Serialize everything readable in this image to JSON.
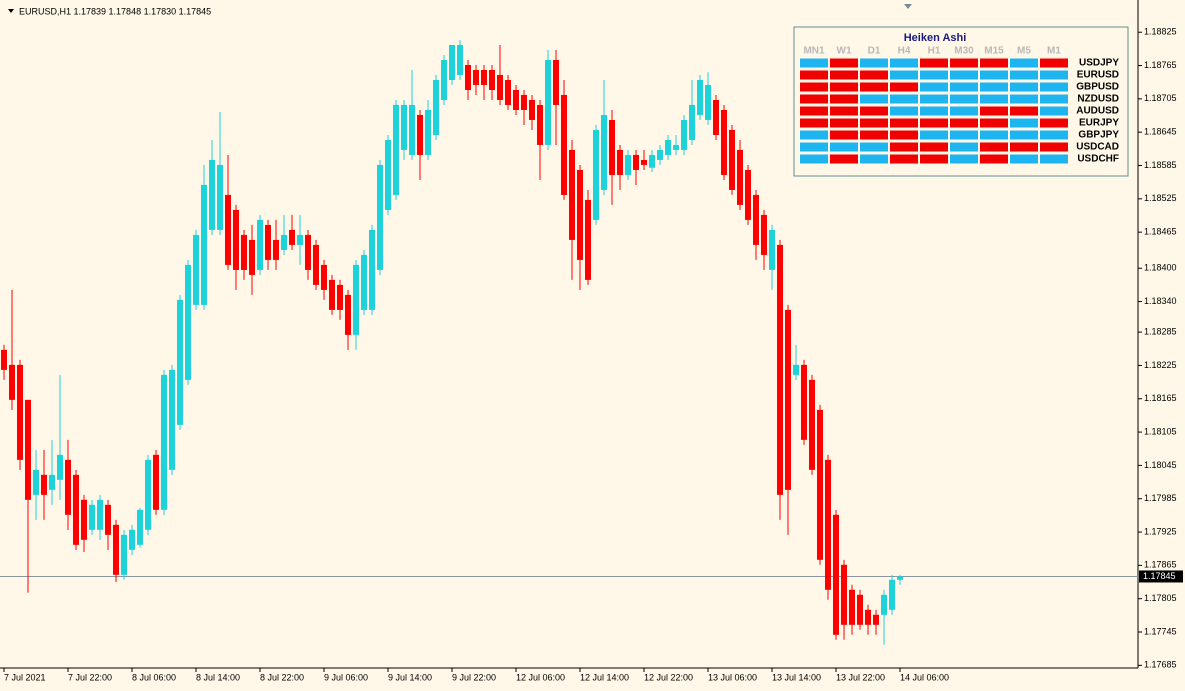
{
  "header": "EURUSD,H1  1.17839 1.17848 1.17830 1.17845",
  "chart_data": {
    "type": "candlestick",
    "x": [
      "7 Jul 2021",
      null,
      null,
      null,
      null,
      null,
      null,
      null,
      "7 Jul 22:00",
      null,
      null,
      null,
      null,
      null,
      null,
      null,
      "8 Jul 06:00",
      null,
      null,
      null,
      null,
      null,
      null,
      null,
      "8 Jul 14:00",
      null,
      null,
      null,
      null,
      null,
      null,
      null,
      "8 Jul 22:00",
      null,
      null,
      null,
      null,
      null,
      null,
      null,
      "9 Jul 06:00",
      null,
      null,
      null,
      null,
      null,
      null,
      null,
      "9 Jul 14:00",
      null,
      null,
      null,
      null,
      null,
      null,
      null,
      "9 Jul 22:00",
      null,
      null,
      null,
      null,
      null,
      null,
      null,
      "12 Jul 06:00",
      null,
      null,
      null,
      null,
      null,
      null,
      null,
      "12 Jul 14:00",
      null,
      null,
      null,
      null,
      null,
      null,
      null,
      "12 Jul 22:00",
      null,
      null,
      null,
      null,
      null,
      null,
      null,
      "13 Jul 06:00",
      null,
      null,
      null,
      null,
      null,
      null,
      null,
      "13 Jul 14:00",
      null,
      null,
      null,
      null,
      null,
      null,
      null,
      "13 Jul 22:00",
      null,
      null,
      null,
      null,
      null,
      null,
      null,
      "14 Jul 06:00"
    ],
    "ohlc": [
      [
        1.18253,
        1.18262,
        1.18199,
        1.18217
      ],
      [
        1.18226,
        1.18361,
        1.18145,
        1.18163
      ],
      [
        1.18226,
        1.18235,
        1.18037,
        1.18055
      ],
      [
        1.18163,
        1.18163,
        1.17816,
        1.17983
      ],
      [
        1.17992,
        1.18073,
        1.17947,
        1.18037
      ],
      [
        1.18028,
        1.18073,
        1.17947,
        1.17992
      ],
      [
        1.18001,
        1.18091,
        1.17974,
        1.18028
      ],
      [
        1.18019,
        1.18208,
        1.17983,
        1.18064
      ],
      [
        1.18055,
        1.18091,
        1.17929,
        1.17956
      ],
      [
        1.18028,
        1.18037,
        1.17893,
        1.17902
      ],
      [
        1.17983,
        1.17992,
        1.17889,
        1.17911
      ],
      [
        1.17929,
        1.17983,
        1.1792,
        1.17974
      ],
      [
        1.17929,
        1.17992,
        1.17911,
        1.17983
      ],
      [
        1.17974,
        1.17983,
        1.17893,
        1.1792
      ],
      [
        1.17938,
        1.17947,
        1.17835,
        1.17848
      ],
      [
        1.17848,
        1.17929,
        1.17839,
        1.1792
      ],
      [
        1.17893,
        1.17938,
        1.17884,
        1.17929
      ],
      [
        1.17902,
        1.17969,
        1.17897,
        1.17965
      ],
      [
        1.17929,
        1.18064,
        1.1792,
        1.18055
      ],
      [
        1.18064,
        1.18073,
        1.17956,
        1.17965
      ],
      [
        1.17965,
        1.18217,
        1.17956,
        1.18208
      ],
      [
        1.18037,
        1.18226,
        1.18028,
        1.18217
      ],
      [
        1.18118,
        1.18352,
        1.18109,
        1.18343
      ],
      [
        1.18199,
        1.18415,
        1.1819,
        1.18406
      ],
      [
        1.18334,
        1.18469,
        1.18325,
        1.1846
      ],
      [
        1.18334,
        1.18586,
        1.18325,
        1.1855
      ],
      [
        1.18469,
        1.18631,
        1.1846,
        1.18595
      ],
      [
        1.18469,
        1.18681,
        1.1846,
        1.18586
      ],
      [
        1.18532,
        1.18604,
        1.18397,
        1.18406
      ],
      [
        1.18505,
        1.18514,
        1.18361,
        1.18397
      ],
      [
        1.1846,
        1.18469,
        1.18379,
        1.18397
      ],
      [
        1.18451,
        1.18478,
        1.18352,
        1.18388
      ],
      [
        1.18397,
        1.18496,
        1.18388,
        1.18487
      ],
      [
        1.18478,
        1.18487,
        1.18397,
        1.18415
      ],
      [
        1.18451,
        1.18487,
        1.18397,
        1.18415
      ],
      [
        1.18433,
        1.18496,
        1.18424,
        1.1846
      ],
      [
        1.18469,
        1.18496,
        1.18433,
        1.18442
      ],
      [
        1.18442,
        1.18496,
        1.18406,
        1.1846
      ],
      [
        1.1846,
        1.18469,
        1.18379,
        1.18397
      ],
      [
        1.18442,
        1.18451,
        1.18361,
        1.1837
      ],
      [
        1.18406,
        1.18415,
        1.18343,
        1.18361
      ],
      [
        1.18379,
        1.18388,
        1.18316,
        1.18325
      ],
      [
        1.1837,
        1.18379,
        1.18307,
        1.18325
      ],
      [
        1.18352,
        1.18361,
        1.18253,
        1.1828
      ],
      [
        1.1828,
        1.18415,
        1.18253,
        1.18406
      ],
      [
        1.18325,
        1.18433,
        1.18316,
        1.18424
      ],
      [
        1.18325,
        1.18478,
        1.18316,
        1.18469
      ],
      [
        1.18397,
        1.18595,
        1.18388,
        1.18586
      ],
      [
        1.18505,
        1.1864,
        1.18496,
        1.18631
      ],
      [
        1.18532,
        1.18703,
        1.18523,
        1.18694
      ],
      [
        1.18613,
        1.18703,
        1.18595,
        1.18694
      ],
      [
        1.18604,
        1.18757,
        1.18595,
        1.18694
      ],
      [
        1.18676,
        1.18685,
        1.18559,
        1.18604
      ],
      [
        1.18604,
        1.18703,
        1.18595,
        1.18685
      ],
      [
        1.1864,
        1.18748,
        1.18631,
        1.18739
      ],
      [
        1.18703,
        1.18784,
        1.18694,
        1.18775
      ],
      [
        1.18739,
        1.18802,
        1.1873,
        1.18802
      ],
      [
        1.18748,
        1.18811,
        1.18739,
        1.18802
      ],
      [
        1.18766,
        1.18775,
        1.18703,
        1.18721
      ],
      [
        1.18757,
        1.18766,
        1.18712,
        1.1873
      ],
      [
        1.18757,
        1.18766,
        1.18703,
        1.1873
      ],
      [
        1.18757,
        1.18766,
        1.18703,
        1.18721
      ],
      [
        1.18748,
        1.18802,
        1.18694,
        1.18703
      ],
      [
        1.18739,
        1.18748,
        1.18685,
        1.18694
      ],
      [
        1.18721,
        1.1873,
        1.18676,
        1.18685
      ],
      [
        1.18712,
        1.18721,
        1.18658,
        1.18685
      ],
      [
        1.18703,
        1.18712,
        1.18649,
        1.18667
      ],
      [
        1.18694,
        1.18703,
        1.18559,
        1.18622
      ],
      [
        1.18622,
        1.18793,
        1.18613,
        1.18775
      ],
      [
        1.18775,
        1.18793,
        1.18622,
        1.18694
      ],
      [
        1.18712,
        1.18739,
        1.18523,
        1.18532
      ],
      [
        1.18613,
        1.18631,
        1.18379,
        1.18451
      ],
      [
        1.18577,
        1.18586,
        1.18361,
        1.18415
      ],
      [
        1.18523,
        1.18541,
        1.1837,
        1.18379
      ],
      [
        1.18487,
        1.18658,
        1.18478,
        1.18649
      ],
      [
        1.18541,
        1.18739,
        1.18532,
        1.18676
      ],
      [
        1.18667,
        1.18685,
        1.18514,
        1.18568
      ],
      [
        1.18613,
        1.18622,
        1.18541,
        1.18568
      ],
      [
        1.18568,
        1.18613,
        1.18559,
        1.18604
      ],
      [
        1.18604,
        1.18613,
        1.1855,
        1.18577
      ],
      [
        1.18595,
        1.18613,
        1.18577,
        1.18586
      ],
      [
        1.18581,
        1.18613,
        1.18573,
        1.18604
      ],
      [
        1.18595,
        1.18622,
        1.18586,
        1.18613
      ],
      [
        1.18604,
        1.1864,
        1.18595,
        1.18631
      ],
      [
        1.18613,
        1.1864,
        1.18604,
        1.18622
      ],
      [
        1.18613,
        1.18676,
        1.18604,
        1.18667
      ],
      [
        1.18631,
        1.18739,
        1.18622,
        1.18694
      ],
      [
        1.18676,
        1.18748,
        1.18667,
        1.18739
      ],
      [
        1.18667,
        1.18753,
        1.18658,
        1.1873
      ],
      [
        1.18703,
        1.18712,
        1.18631,
        1.1864
      ],
      [
        1.18685,
        1.18694,
        1.18559,
        1.18568
      ],
      [
        1.18649,
        1.18658,
        1.18532,
        1.18541
      ],
      [
        1.18613,
        1.18631,
        1.18505,
        1.18514
      ],
      [
        1.18577,
        1.18586,
        1.18478,
        1.18487
      ],
      [
        1.18532,
        1.18541,
        1.18415,
        1.18442
      ],
      [
        1.18496,
        1.18505,
        1.18397,
        1.18424
      ],
      [
        1.18397,
        1.18478,
        1.18361,
        1.18469
      ],
      [
        1.18442,
        1.18451,
        1.17947,
        1.17992
      ],
      [
        1.18325,
        1.18334,
        1.1792,
        1.18001
      ],
      [
        1.18208,
        1.18262,
        1.18199,
        1.18226
      ],
      [
        1.18226,
        1.18235,
        1.18082,
        1.18091
      ],
      [
        1.18199,
        1.18208,
        1.18028,
        1.18037
      ],
      [
        1.18145,
        1.18154,
        1.17866,
        1.17875
      ],
      [
        1.18055,
        1.18064,
        1.17803,
        1.17821
      ],
      [
        1.17956,
        1.17965,
        1.17731,
        1.1774
      ],
      [
        1.17866,
        1.17875,
        1.17731,
        1.17758
      ],
      [
        1.17821,
        1.1783,
        1.1774,
        1.17758
      ],
      [
        1.17812,
        1.17821,
        1.17749,
        1.17758
      ],
      [
        1.17785,
        1.17794,
        1.1774,
        1.17758
      ],
      [
        1.17776,
        1.17785,
        1.1774,
        1.17758
      ],
      [
        1.17776,
        1.17821,
        1.17722,
        1.17812
      ],
      [
        1.17785,
        1.17848,
        1.17776,
        1.17839
      ],
      [
        1.17839,
        1.17848,
        1.1783,
        1.17845
      ]
    ],
    "up_color": "#1ed2dc",
    "down_color": "#ff0000",
    "current_price": 1.17845,
    "ylim": [
      1.17682,
      1.18883
    ],
    "yticks": [
      1.18825,
      1.18765,
      1.18705,
      1.18645,
      1.18585,
      1.18525,
      1.18465,
      {
        "value": 1.184,
        "label": "1.18400"
      },
      {
        "value": 1.1834,
        "label": "1.18340"
      },
      1.18285,
      1.18225,
      1.18165,
      1.18105,
      1.18045,
      1.17985,
      1.17925,
      1.17865,
      1.17805,
      1.17745,
      1.17685
    ]
  },
  "panel": {
    "title": "Heiken Ashi",
    "columns": [
      "MN1",
      "W1",
      "D1",
      "H4",
      "H1",
      "M30",
      "M15",
      "M5",
      "M1"
    ],
    "rows": [
      {
        "name": "USDJPY",
        "cells": [
          "#1eb4f0",
          "#f00000",
          "#1eb4f0",
          "#1eb4f0",
          "#f00000",
          "#f00000",
          "#f00000",
          "#1eb4f0",
          "#f00000"
        ]
      },
      {
        "name": "EURUSD",
        "cells": [
          "#f00000",
          "#f00000",
          "#f00000",
          "#1eb4f0",
          "#1eb4f0",
          "#1eb4f0",
          "#1eb4f0",
          "#1eb4f0",
          "#1eb4f0"
        ]
      },
      {
        "name": "GBPUSD",
        "cells": [
          "#f00000",
          "#f00000",
          "#f00000",
          "#f00000",
          "#1eb4f0",
          "#1eb4f0",
          "#1eb4f0",
          "#1eb4f0",
          "#1eb4f0"
        ]
      },
      {
        "name": "NZDUSD",
        "cells": [
          "#f00000",
          "#f00000",
          "#1eb4f0",
          "#1eb4f0",
          "#1eb4f0",
          "#1eb4f0",
          "#1eb4f0",
          "#1eb4f0",
          "#1eb4f0"
        ]
      },
      {
        "name": "AUDUSD",
        "cells": [
          "#f00000",
          "#f00000",
          "#f00000",
          "#1eb4f0",
          "#1eb4f0",
          "#1eb4f0",
          "#f00000",
          "#f00000",
          "#1eb4f0"
        ]
      },
      {
        "name": "EURJPY",
        "cells": [
          "#f00000",
          "#f00000",
          "#f00000",
          "#f00000",
          "#f00000",
          "#f00000",
          "#f00000",
          "#1eb4f0",
          "#f00000"
        ]
      },
      {
        "name": "GBPJPY",
        "cells": [
          "#1eb4f0",
          "#f00000",
          "#f00000",
          "#f00000",
          "#1eb4f0",
          "#1eb4f0",
          "#1eb4f0",
          "#1eb4f0",
          "#1eb4f0"
        ]
      },
      {
        "name": "USDCAD",
        "cells": [
          "#1eb4f0",
          "#1eb4f0",
          "#1eb4f0",
          "#f00000",
          "#f00000",
          "#1eb4f0",
          "#f00000",
          "#f00000",
          "#f00000"
        ]
      },
      {
        "name": "USDCHF",
        "cells": [
          "#1eb4f0",
          "#f00000",
          "#1eb4f0",
          "#f00000",
          "#f00000",
          "#1eb4f0",
          "#f00000",
          "#1eb4f0",
          "#1eb4f0"
        ]
      }
    ]
  }
}
